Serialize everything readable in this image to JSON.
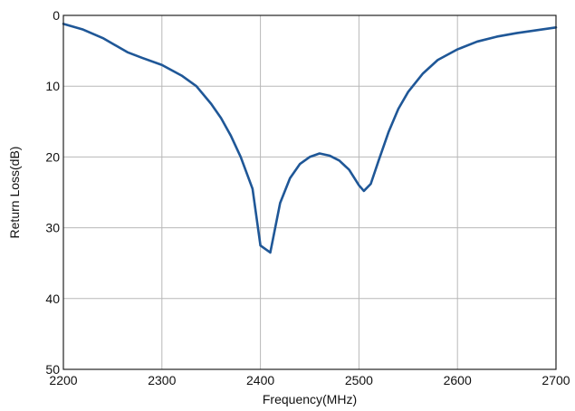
{
  "chart_data": {
    "type": "line",
    "title": "",
    "xlabel": "Frequency(MHz)",
    "ylabel": "Return Loss(dB)",
    "xlim": [
      2200,
      2700
    ],
    "ylim": [
      0,
      50
    ],
    "y_inverted": true,
    "grid": true,
    "x_ticks": [
      2200,
      2300,
      2400,
      2500,
      2600,
      2700
    ],
    "y_ticks": [
      0,
      10,
      20,
      30,
      40,
      50
    ],
    "x_tick_labels": [
      "2200",
      "2300",
      "2400",
      "2500",
      "2600",
      "2700"
    ],
    "y_tick_labels": [
      "0",
      "10",
      "20",
      "30",
      "40",
      "50"
    ],
    "colors": {
      "line": "#1f5797",
      "grid": "#b8b8b8",
      "frame": "#222222"
    },
    "series": [
      {
        "x": [
          2200,
          2220,
          2240,
          2265,
          2280,
          2300,
          2320,
          2335,
          2350,
          2360,
          2370,
          2380,
          2392,
          2400,
          2410,
          2420,
          2430,
          2440,
          2450,
          2460,
          2470,
          2480,
          2490,
          2500,
          2505,
          2512,
          2520,
          2530,
          2540,
          2550,
          2565,
          2580,
          2600,
          2620,
          2640,
          2660,
          2680,
          2700
        ],
        "y": [
          1.2,
          2.0,
          3.2,
          5.2,
          6.0,
          7.0,
          8.5,
          10.0,
          12.5,
          14.5,
          17.0,
          20.0,
          24.5,
          32.5,
          33.5,
          26.5,
          23.0,
          21.0,
          20.0,
          19.5,
          19.8,
          20.5,
          21.8,
          24.0,
          24.8,
          23.8,
          20.5,
          16.5,
          13.2,
          10.8,
          8.2,
          6.3,
          4.8,
          3.7,
          3.0,
          2.5,
          2.1,
          1.7
        ]
      }
    ]
  }
}
